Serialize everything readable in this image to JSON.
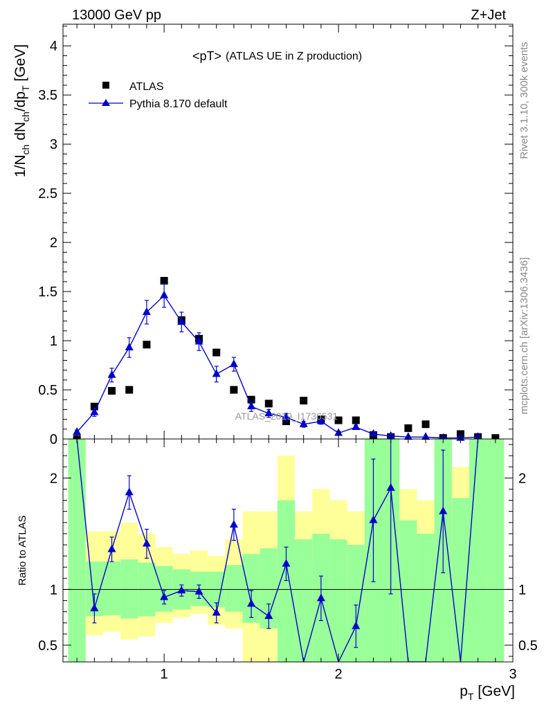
{
  "header": {
    "left": "13000 GeV pp",
    "right": "Z+Jet"
  },
  "side": {
    "rivet": "Rivet 3.1.10,  300k events",
    "mcplots": "mcplots.cern.ch [arXiv:1306.3436]"
  },
  "chart_data": [
    {
      "type": "scatter",
      "title": "<pT>",
      "subtitle": "(ATLAS UE in Z production)",
      "watermark": "ATLAS_2019_I1736531",
      "ylabel": "1/N_ch dN_ch/dp_T [GeV]",
      "xlim": [
        0.42,
        3.0
      ],
      "ylim": [
        0,
        4.22
      ],
      "y_ticks": [
        "0",
        "0.5",
        "1",
        "1.5",
        "2",
        "2.5",
        "3",
        "3.5",
        "4"
      ],
      "legend_position": "top-left",
      "series": [
        {
          "name": "ATLAS",
          "marker": "square",
          "color": "#000000",
          "x": [
            0.5,
            0.6,
            0.7,
            0.8,
            0.9,
            1.0,
            1.1,
            1.2,
            1.3,
            1.4,
            1.5,
            1.6,
            1.7,
            1.8,
            1.9,
            2.0,
            2.1,
            2.2,
            2.3,
            2.4,
            2.5,
            2.6,
            2.7,
            2.8,
            2.9
          ],
          "y": [
            0.0,
            0.33,
            0.49,
            0.5,
            0.96,
            1.61,
            1.21,
            1.02,
            0.88,
            0.5,
            0.4,
            0.36,
            0.18,
            0.39,
            0.2,
            0.19,
            0.19,
            0.04,
            0.02,
            0.11,
            0.15,
            0.01,
            0.05,
            0.02,
            0.01
          ]
        },
        {
          "name": "Pythia 8.170 default",
          "marker": "triangle",
          "color": "#0000cc",
          "x": [
            0.5,
            0.6,
            0.7,
            0.8,
            0.9,
            1.0,
            1.1,
            1.2,
            1.3,
            1.4,
            1.5,
            1.6,
            1.7,
            1.8,
            1.9,
            2.0,
            2.1,
            2.2,
            2.3,
            2.4,
            2.5,
            2.6,
            2.7,
            2.8
          ],
          "y": [
            0.07,
            0.27,
            0.65,
            0.93,
            1.29,
            1.46,
            1.19,
            0.99,
            0.66,
            0.76,
            0.33,
            0.26,
            0.22,
            0.15,
            0.18,
            0.06,
            0.12,
            0.05,
            0.03,
            0.02,
            0.02,
            0.01,
            0.01,
            0.02
          ],
          "yerr": [
            0.02,
            0.04,
            0.07,
            0.1,
            0.12,
            0.12,
            0.1,
            0.09,
            0.08,
            0.07,
            0.05,
            0.04,
            0.04,
            0.03,
            0.03,
            0.02,
            0.02,
            0.02,
            0.01,
            0.01,
            0.01,
            0.01,
            0.01,
            0.01
          ]
        }
      ]
    },
    {
      "type": "line",
      "ylabel": "Ratio to ATLAS",
      "xlabel": "p_T [GeV]",
      "xlim": [
        0.42,
        3.0
      ],
      "ylim": [
        0.35,
        2.35
      ],
      "x_ticks": [
        "1",
        "2",
        "3"
      ],
      "y_ticks": [
        "0.5",
        "1",
        "2"
      ],
      "reference_line": 1,
      "bands": {
        "colors": {
          "inner": "#99ff99",
          "outer": "#ffff99"
        },
        "bins": [
          0.45,
          0.55,
          0.65,
          0.75,
          0.85,
          0.95,
          1.05,
          1.15,
          1.25,
          1.35,
          1.45,
          1.55,
          1.65,
          1.75,
          1.85,
          1.95,
          2.05,
          2.15,
          2.25,
          2.35,
          2.45,
          2.55,
          2.65,
          2.75,
          2.85,
          2.95
        ],
        "inner_low": [
          0.35,
          0.76,
          0.77,
          0.74,
          0.76,
          0.8,
          0.82,
          0.85,
          0.84,
          0.8,
          0.7,
          0.65,
          0.35,
          0.35,
          0.35,
          0.35,
          0.35,
          0.35,
          0.35,
          0.35,
          0.35,
          0.35,
          0.35,
          0.35,
          0.35
        ],
        "inner_high": [
          2.35,
          1.25,
          1.25,
          1.27,
          1.24,
          1.21,
          1.18,
          1.16,
          1.16,
          1.22,
          1.32,
          1.37,
          1.8,
          1.45,
          1.5,
          1.45,
          1.4,
          2.35,
          2.35,
          1.62,
          1.5,
          2.35,
          1.82,
          2.35,
          2.35
        ],
        "outer_low": [
          0.35,
          0.59,
          0.62,
          0.55,
          0.58,
          0.7,
          0.75,
          0.78,
          0.68,
          0.65,
          0.35,
          0.35,
          0.35,
          0.35,
          0.35,
          0.35,
          0.35,
          0.35,
          0.35,
          0.35,
          0.35,
          0.35,
          0.35,
          0.35,
          0.35
        ],
        "outer_high": [
          2.35,
          1.52,
          1.52,
          1.6,
          1.5,
          1.38,
          1.32,
          1.35,
          1.3,
          1.45,
          1.7,
          1.7,
          2.2,
          1.7,
          1.9,
          1.8,
          1.7,
          2.35,
          2.35,
          1.9,
          1.8,
          2.35,
          2.1,
          2.35,
          2.35
        ]
      },
      "series": [
        {
          "name": "Pythia 8.170 default",
          "color": "#0000cc",
          "x": [
            0.5,
            0.6,
            0.7,
            0.8,
            0.9,
            1.0,
            1.1,
            1.2,
            1.3,
            1.4,
            1.5,
            1.6,
            1.7,
            1.8,
            1.9,
            2.0,
            2.1,
            2.2,
            2.3,
            2.4,
            2.5,
            2.6,
            2.7,
            2.8
          ],
          "y": [
            3.0,
            0.83,
            1.36,
            1.87,
            1.41,
            0.93,
            0.99,
            0.98,
            0.79,
            1.58,
            0.87,
            0.76,
            1.23,
            0.3,
            0.92,
            0.3,
            0.67,
            1.62,
            1.91,
            0.2,
            0.2,
            1.7,
            0.2,
            3.0
          ],
          "yerr": [
            0.0,
            0.13,
            0.11,
            0.15,
            0.13,
            0.06,
            0.05,
            0.06,
            0.09,
            0.14,
            0.12,
            0.11,
            0.15,
            0.0,
            0.2,
            0.0,
            0.19,
            0.55,
            0.95,
            0.0,
            0.0,
            0.55,
            0.0,
            0.0
          ]
        }
      ]
    }
  ]
}
